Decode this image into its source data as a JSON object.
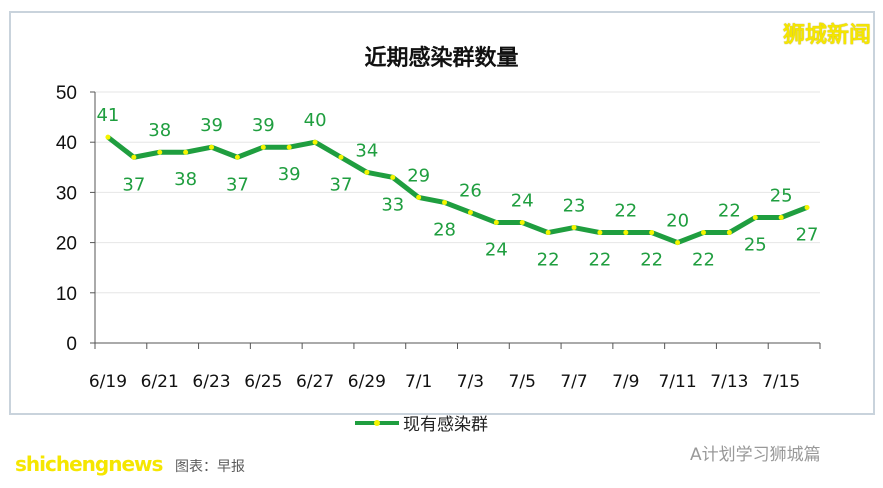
{
  "brand": "狮城新闻",
  "watermark_source": "图表：早报",
  "watermark_site": "shichengnews",
  "watermark_wechat": "A计划学习狮城篇",
  "chart_data": {
    "type": "line",
    "title": "近期感染群数量",
    "categories": [
      "6/19",
      "6/20",
      "6/21",
      "6/22",
      "6/23",
      "6/24",
      "6/25",
      "6/26",
      "6/27",
      "6/28",
      "6/29",
      "6/30",
      "7/1",
      "7/2",
      "7/3",
      "7/4",
      "7/5",
      "7/6",
      "7/7",
      "7/8",
      "7/9",
      "7/10",
      "7/11",
      "7/12",
      "7/13",
      "7/14",
      "7/15",
      "7/16"
    ],
    "x_tick_labels": [
      "6/19",
      "6/21",
      "6/23",
      "6/25",
      "6/27",
      "6/29",
      "7/1",
      "7/3",
      "7/5",
      "7/7",
      "7/9",
      "7/11",
      "7/13",
      "7/15"
    ],
    "series": [
      {
        "name": "现有感染群",
        "values": [
          41,
          37,
          38,
          38,
          39,
          37,
          39,
          39,
          40,
          37,
          34,
          33,
          29,
          28,
          26,
          24,
          24,
          22,
          23,
          22,
          22,
          22,
          20,
          22,
          22,
          25,
          25,
          27
        ]
      }
    ],
    "ylim": [
      0,
      50
    ],
    "y_ticks": [
      0,
      10,
      20,
      30,
      40,
      50
    ],
    "grid": true,
    "legend": "bottom",
    "colors": {
      "line": "#1f9e3f",
      "marker": "#f5f500",
      "label": "#1f9e3f"
    }
  }
}
